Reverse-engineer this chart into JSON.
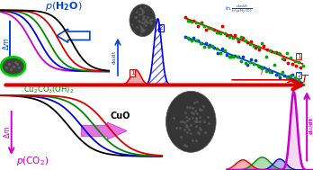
{
  "bg_top": "#cce8f0",
  "bg_bottom": "#f0cce0",
  "divider_color": "#dd0000",
  "curve_colors_top": [
    "#cc00cc",
    "#0000dd",
    "#008800",
    "#dd0000",
    "#000000"
  ],
  "curve_colors_bottom": [
    "#000000",
    "#0000dd",
    "#008800",
    "#dd0000"
  ],
  "peak1_color": "#dd0000",
  "hatch_color": "#0000dd",
  "line1_color": "#dd0000",
  "line2_color": "#0000cc",
  "arrow_color_top": "#0044cc",
  "arrow_color_bottom": "#cc00cc",
  "text_color_top": "#0044cc",
  "text_color_bottom": "#cc00cc",
  "text_color_malachite": "#008800",
  "sphere_color": "#404040",
  "sphere_edge_top": "#00cc00",
  "sphere_edge_bottom": "#ffffff"
}
